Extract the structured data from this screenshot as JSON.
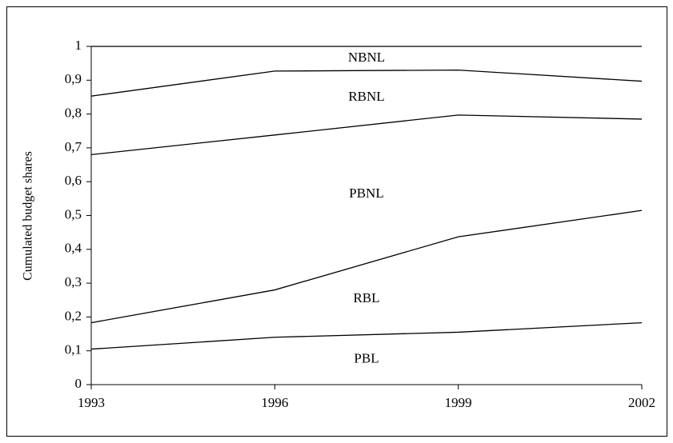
{
  "chart_data": {
    "type": "stacked-line",
    "y_label": "Cumulated budget shares",
    "x": [
      1993,
      1996,
      1999,
      2002
    ],
    "series": [
      {
        "name": "PBL",
        "color": "#000000",
        "values": [
          0.105,
          0.14,
          0.155,
          0.183
        ]
      },
      {
        "name": "RBL",
        "color": "#000000",
        "values": [
          0.078,
          0.14,
          0.282,
          0.332
        ]
      },
      {
        "name": "PBNL",
        "color": "#000000",
        "values": [
          0.497,
          0.458,
          0.36,
          0.27
        ]
      },
      {
        "name": "RBNL",
        "color": "#000000",
        "values": [
          0.173,
          0.189,
          0.133,
          0.112
        ]
      },
      {
        "name": "NBNL",
        "color": "#000000",
        "values": [
          0.147,
          0.073,
          0.07,
          0.103
        ]
      }
    ],
    "xlim": [
      1993,
      2002
    ],
    "xticks": [
      1993,
      1996,
      1999,
      2002
    ],
    "ylim": [
      0,
      1
    ],
    "yticks": [
      0,
      {
        "value": 0.1,
        "label": "0,1"
      },
      {
        "value": 0.2,
        "label": "0,2"
      },
      {
        "value": 0.3,
        "label": "0,3"
      },
      {
        "value": 0.4,
        "label": "0,4"
      },
      {
        "value": 0.5,
        "label": "0,5"
      },
      {
        "value": 0.6,
        "label": "0,6"
      },
      {
        "value": 0.7,
        "label": "0,7"
      },
      {
        "value": 0.8,
        "label": "0,8"
      },
      {
        "value": 0.9,
        "label": "0,9"
      },
      1
    ],
    "grid": false
  }
}
